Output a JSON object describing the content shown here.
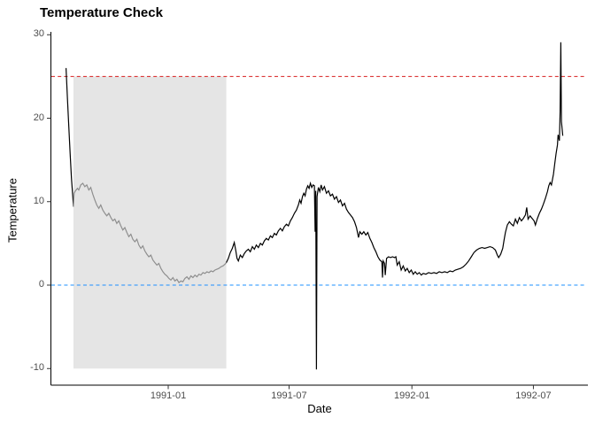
{
  "title": "Temperature Check",
  "chart_data": {
    "type": "line",
    "title": "Temperature Check",
    "xlabel": "Date",
    "ylabel": "Temperature",
    "grid": "off",
    "legend": "none",
    "theme": "classic-white, black left and bottom axis lines only",
    "ylim": [
      -11.9,
      30.3
    ],
    "xlim_dates": [
      "1990-07-10",
      "1992-09-23"
    ],
    "y_ticks": [
      30,
      20,
      10,
      0,
      -10
    ],
    "x_ticks": [
      {
        "label": "1991-01",
        "date": "1991-01-01"
      },
      {
        "label": "1991-07",
        "date": "1991-07-01"
      },
      {
        "label": "1992-01",
        "date": "1992-01-01"
      },
      {
        "label": "1992-07",
        "date": "1992-07-01"
      }
    ],
    "reference_lines": [
      {
        "name": "upper-threshold-line",
        "value": 25,
        "color": "#d81e1e",
        "style": "dashed"
      },
      {
        "name": "zero-line",
        "value": 0,
        "color": "#1e90ff",
        "style": "dashed"
      }
    ],
    "shaded_region": {
      "name": "highlight-period",
      "date_start": "1990-08-12",
      "date_end": "1991-03-29",
      "y_min": -10,
      "y_max": 25,
      "fill": "#e5e5e5"
    },
    "series": [
      {
        "name": "temperature-initial-black",
        "color": "#000000",
        "points": [
          [
            "1990-08-01",
            26.0
          ],
          [
            "1990-08-03",
            22.5
          ],
          [
            "1990-08-05",
            19.0
          ],
          [
            "1990-08-07",
            15.8
          ],
          [
            "1990-08-09",
            12.8
          ],
          [
            "1990-08-11",
            10.6
          ],
          [
            "1990-08-12",
            9.4
          ]
        ]
      },
      {
        "name": "temperature-shaded-gray",
        "color": "#8f8f8f",
        "points": [
          [
            "1990-08-12",
            9.4
          ],
          [
            "1990-08-13",
            11.0
          ],
          [
            "1990-08-15",
            11.3
          ],
          [
            "1990-08-18",
            11.6
          ],
          [
            "1990-08-20",
            11.4
          ],
          [
            "1990-08-23",
            12.0
          ],
          [
            "1990-08-26",
            12.2
          ],
          [
            "1990-08-29",
            11.8
          ],
          [
            "1990-09-01",
            12.0
          ],
          [
            "1990-09-04",
            11.4
          ],
          [
            "1990-09-07",
            11.7
          ],
          [
            "1990-09-10",
            10.9
          ],
          [
            "1990-09-13",
            10.2
          ],
          [
            "1990-09-16",
            9.6
          ],
          [
            "1990-09-19",
            9.2
          ],
          [
            "1990-09-22",
            9.6
          ],
          [
            "1990-09-25",
            9.0
          ],
          [
            "1990-09-28",
            8.6
          ],
          [
            "1990-10-01",
            8.3
          ],
          [
            "1990-10-04",
            8.6
          ],
          [
            "1990-10-07",
            8.1
          ],
          [
            "1990-10-10",
            7.7
          ],
          [
            "1990-10-13",
            7.9
          ],
          [
            "1990-10-16",
            7.4
          ],
          [
            "1990-10-19",
            7.7
          ],
          [
            "1990-10-22",
            7.1
          ],
          [
            "1990-10-25",
            6.6
          ],
          [
            "1990-10-28",
            6.9
          ],
          [
            "1990-10-31",
            6.3
          ],
          [
            "1990-11-03",
            5.8
          ],
          [
            "1990-11-06",
            6.1
          ],
          [
            "1990-11-09",
            5.5
          ],
          [
            "1990-11-12",
            5.2
          ],
          [
            "1990-11-15",
            5.5
          ],
          [
            "1990-11-18",
            4.8
          ],
          [
            "1990-11-21",
            4.4
          ],
          [
            "1990-11-24",
            4.7
          ],
          [
            "1990-11-27",
            4.1
          ],
          [
            "1990-11-30",
            3.7
          ],
          [
            "1990-12-03",
            3.4
          ],
          [
            "1990-12-06",
            3.6
          ],
          [
            "1990-12-09",
            3.0
          ],
          [
            "1990-12-12",
            2.7
          ],
          [
            "1990-12-15",
            2.4
          ],
          [
            "1990-12-18",
            2.6
          ],
          [
            "1990-12-21",
            2.0
          ],
          [
            "1990-12-24",
            1.6
          ],
          [
            "1990-12-27",
            1.3
          ],
          [
            "1990-12-30",
            1.1
          ],
          [
            "1991-01-02",
            0.8
          ],
          [
            "1991-01-05",
            0.6
          ],
          [
            "1991-01-08",
            0.9
          ],
          [
            "1991-01-11",
            0.5
          ],
          [
            "1991-01-14",
            0.7
          ],
          [
            "1991-01-17",
            0.3
          ],
          [
            "1991-01-20",
            0.5
          ],
          [
            "1991-01-23",
            0.4
          ],
          [
            "1991-01-26",
            0.8
          ],
          [
            "1991-01-29",
            1.0
          ],
          [
            "1991-02-01",
            0.7
          ],
          [
            "1991-02-04",
            1.1
          ],
          [
            "1991-02-07",
            0.9
          ],
          [
            "1991-02-10",
            1.2
          ],
          [
            "1991-02-13",
            1.0
          ],
          [
            "1991-02-16",
            1.3
          ],
          [
            "1991-02-19",
            1.2
          ],
          [
            "1991-02-22",
            1.5
          ],
          [
            "1991-02-25",
            1.4
          ],
          [
            "1991-02-28",
            1.6
          ],
          [
            "1991-03-03",
            1.5
          ],
          [
            "1991-03-06",
            1.7
          ],
          [
            "1991-03-09",
            1.6
          ],
          [
            "1991-03-12",
            1.8
          ],
          [
            "1991-03-15",
            1.9
          ],
          [
            "1991-03-18",
            2.0
          ],
          [
            "1991-03-21",
            2.2
          ],
          [
            "1991-03-24",
            2.3
          ],
          [
            "1991-03-27",
            2.5
          ],
          [
            "1991-03-29",
            2.7
          ]
        ]
      },
      {
        "name": "temperature-main-black",
        "color": "#000000",
        "points": [
          [
            "1991-03-29",
            2.7
          ],
          [
            "1991-04-01",
            3.2
          ],
          [
            "1991-04-04",
            3.9
          ],
          [
            "1991-04-07",
            4.4
          ],
          [
            "1991-04-10",
            5.1
          ],
          [
            "1991-04-12",
            4.2
          ],
          [
            "1991-04-14",
            3.2
          ],
          [
            "1991-04-16",
            2.9
          ],
          [
            "1991-04-19",
            3.6
          ],
          [
            "1991-04-22",
            3.3
          ],
          [
            "1991-04-25",
            3.8
          ],
          [
            "1991-04-28",
            4.1
          ],
          [
            "1991-05-01",
            4.3
          ],
          [
            "1991-05-04",
            4.0
          ],
          [
            "1991-05-07",
            4.6
          ],
          [
            "1991-05-10",
            4.3
          ],
          [
            "1991-05-13",
            4.8
          ],
          [
            "1991-05-16",
            4.5
          ],
          [
            "1991-05-19",
            5.0
          ],
          [
            "1991-05-22",
            4.8
          ],
          [
            "1991-05-25",
            5.3
          ],
          [
            "1991-05-28",
            5.6
          ],
          [
            "1991-05-31",
            5.4
          ],
          [
            "1991-06-03",
            5.9
          ],
          [
            "1991-06-06",
            5.7
          ],
          [
            "1991-06-09",
            6.2
          ],
          [
            "1991-06-12",
            6.0
          ],
          [
            "1991-06-15",
            6.5
          ],
          [
            "1991-06-18",
            6.8
          ],
          [
            "1991-06-21",
            6.5
          ],
          [
            "1991-06-24",
            7.0
          ],
          [
            "1991-06-27",
            7.3
          ],
          [
            "1991-06-30",
            7.1
          ],
          [
            "1991-07-03",
            7.7
          ],
          [
            "1991-07-06",
            8.1
          ],
          [
            "1991-07-09",
            8.6
          ],
          [
            "1991-07-12",
            9.0
          ],
          [
            "1991-07-15",
            9.6
          ],
          [
            "1991-07-17",
            10.2
          ],
          [
            "1991-07-19",
            9.8
          ],
          [
            "1991-07-21",
            10.6
          ],
          [
            "1991-07-23",
            11.0
          ],
          [
            "1991-07-25",
            10.7
          ],
          [
            "1991-07-27",
            11.5
          ],
          [
            "1991-07-29",
            11.9
          ],
          [
            "1991-07-31",
            11.6
          ],
          [
            "1991-08-02",
            12.2
          ],
          [
            "1991-08-04",
            11.7
          ],
          [
            "1991-08-06",
            12.0
          ],
          [
            "1991-08-08",
            11.9
          ],
          [
            "1991-08-09",
            6.4
          ],
          [
            "1991-08-10",
            11.3
          ],
          [
            "1991-08-11",
            -10.1
          ],
          [
            "1991-08-12",
            10.6
          ],
          [
            "1991-08-14",
            11.7
          ],
          [
            "1991-08-16",
            11.2
          ],
          [
            "1991-08-18",
            12.0
          ],
          [
            "1991-08-20",
            11.4
          ],
          [
            "1991-08-23",
            11.8
          ],
          [
            "1991-08-26",
            11.0
          ],
          [
            "1991-08-29",
            11.3
          ],
          [
            "1991-09-01",
            10.7
          ],
          [
            "1991-09-04",
            10.9
          ],
          [
            "1991-09-07",
            10.3
          ],
          [
            "1991-09-10",
            10.6
          ],
          [
            "1991-09-13",
            9.9
          ],
          [
            "1991-09-16",
            10.2
          ],
          [
            "1991-09-19",
            9.5
          ],
          [
            "1991-09-22",
            9.8
          ],
          [
            "1991-09-25",
            9.1
          ],
          [
            "1991-09-28",
            8.7
          ],
          [
            "1991-10-01",
            8.4
          ],
          [
            "1991-10-04",
            8.1
          ],
          [
            "1991-10-07",
            7.6
          ],
          [
            "1991-10-10",
            6.9
          ],
          [
            "1991-10-13",
            5.7
          ],
          [
            "1991-10-15",
            6.4
          ],
          [
            "1991-10-18",
            6.1
          ],
          [
            "1991-10-21",
            6.4
          ],
          [
            "1991-10-24",
            6.0
          ],
          [
            "1991-10-27",
            6.3
          ],
          [
            "1991-10-30",
            5.6
          ],
          [
            "1991-11-02",
            5.1
          ],
          [
            "1991-11-05",
            4.5
          ],
          [
            "1991-11-08",
            4.0
          ],
          [
            "1991-11-11",
            3.4
          ],
          [
            "1991-11-14",
            3.0
          ],
          [
            "1991-11-17",
            2.8
          ],
          [
            "1991-11-18",
            0.9
          ],
          [
            "1991-11-19",
            2.9
          ],
          [
            "1991-11-21",
            2.6
          ],
          [
            "1991-11-22",
            1.2
          ],
          [
            "1991-11-24",
            3.2
          ],
          [
            "1991-11-27",
            3.4
          ],
          [
            "1991-11-30",
            3.3
          ],
          [
            "1991-12-03",
            3.4
          ],
          [
            "1991-12-06",
            3.3
          ],
          [
            "1991-12-08",
            3.4
          ],
          [
            "1991-12-10",
            2.4
          ],
          [
            "1991-12-13",
            2.8
          ],
          [
            "1991-12-16",
            1.8
          ],
          [
            "1991-12-19",
            2.3
          ],
          [
            "1991-12-22",
            1.7
          ],
          [
            "1991-12-25",
            2.0
          ],
          [
            "1991-12-28",
            1.5
          ],
          [
            "1991-12-31",
            1.8
          ],
          [
            "1992-01-03",
            1.3
          ],
          [
            "1992-01-06",
            1.6
          ],
          [
            "1992-01-09",
            1.3
          ],
          [
            "1992-01-12",
            1.5
          ],
          [
            "1992-01-15",
            1.2
          ],
          [
            "1992-01-18",
            1.4
          ],
          [
            "1992-01-22",
            1.3
          ],
          [
            "1992-01-26",
            1.5
          ],
          [
            "1992-01-30",
            1.4
          ],
          [
            "1992-02-03",
            1.5
          ],
          [
            "1992-02-07",
            1.4
          ],
          [
            "1992-02-11",
            1.6
          ],
          [
            "1992-02-15",
            1.5
          ],
          [
            "1992-02-19",
            1.6
          ],
          [
            "1992-02-23",
            1.5
          ],
          [
            "1992-02-27",
            1.7
          ],
          [
            "1992-03-02",
            1.6
          ],
          [
            "1992-03-06",
            1.8
          ],
          [
            "1992-03-10",
            1.9
          ],
          [
            "1992-03-14",
            2.0
          ],
          [
            "1992-03-18",
            2.2
          ],
          [
            "1992-03-22",
            2.5
          ],
          [
            "1992-03-26",
            2.9
          ],
          [
            "1992-03-30",
            3.4
          ],
          [
            "1992-04-03",
            3.9
          ],
          [
            "1992-04-07",
            4.2
          ],
          [
            "1992-04-11",
            4.4
          ],
          [
            "1992-04-15",
            4.5
          ],
          [
            "1992-04-19",
            4.4
          ],
          [
            "1992-04-23",
            4.5
          ],
          [
            "1992-04-27",
            4.6
          ],
          [
            "1992-05-01",
            4.5
          ],
          [
            "1992-05-05",
            4.2
          ],
          [
            "1992-05-08",
            3.6
          ],
          [
            "1992-05-10",
            3.3
          ],
          [
            "1992-05-13",
            3.7
          ],
          [
            "1992-05-16",
            4.4
          ],
          [
            "1992-05-18",
            5.4
          ],
          [
            "1992-05-20",
            6.3
          ],
          [
            "1992-05-23",
            7.2
          ],
          [
            "1992-05-26",
            7.6
          ],
          [
            "1992-05-29",
            7.3
          ],
          [
            "1992-06-01",
            7.1
          ],
          [
            "1992-06-04",
            7.9
          ],
          [
            "1992-06-07",
            7.4
          ],
          [
            "1992-06-10",
            8.1
          ],
          [
            "1992-06-13",
            7.7
          ],
          [
            "1992-06-16",
            8.0
          ],
          [
            "1992-06-19",
            8.4
          ],
          [
            "1992-06-21",
            9.3
          ],
          [
            "1992-06-23",
            7.9
          ],
          [
            "1992-06-26",
            8.3
          ],
          [
            "1992-06-29",
            8.0
          ],
          [
            "1992-07-02",
            7.7
          ],
          [
            "1992-07-04",
            7.2
          ],
          [
            "1992-07-07",
            8.0
          ],
          [
            "1992-07-10",
            8.6
          ],
          [
            "1992-07-13",
            9.1
          ],
          [
            "1992-07-16",
            9.7
          ],
          [
            "1992-07-19",
            10.4
          ],
          [
            "1992-07-22",
            11.2
          ],
          [
            "1992-07-24",
            11.9
          ],
          [
            "1992-07-26",
            12.3
          ],
          [
            "1992-07-28",
            12.0
          ],
          [
            "1992-07-31",
            13.3
          ],
          [
            "1992-08-02",
            14.6
          ],
          [
            "1992-08-04",
            15.8
          ],
          [
            "1992-08-06",
            16.8
          ],
          [
            "1992-08-07",
            18.0
          ],
          [
            "1992-08-09",
            17.3
          ],
          [
            "1992-08-10",
            20.8
          ],
          [
            "1992-08-11",
            29.1
          ],
          [
            "1992-08-12",
            19.6
          ],
          [
            "1992-08-14",
            17.9
          ]
        ]
      }
    ]
  }
}
